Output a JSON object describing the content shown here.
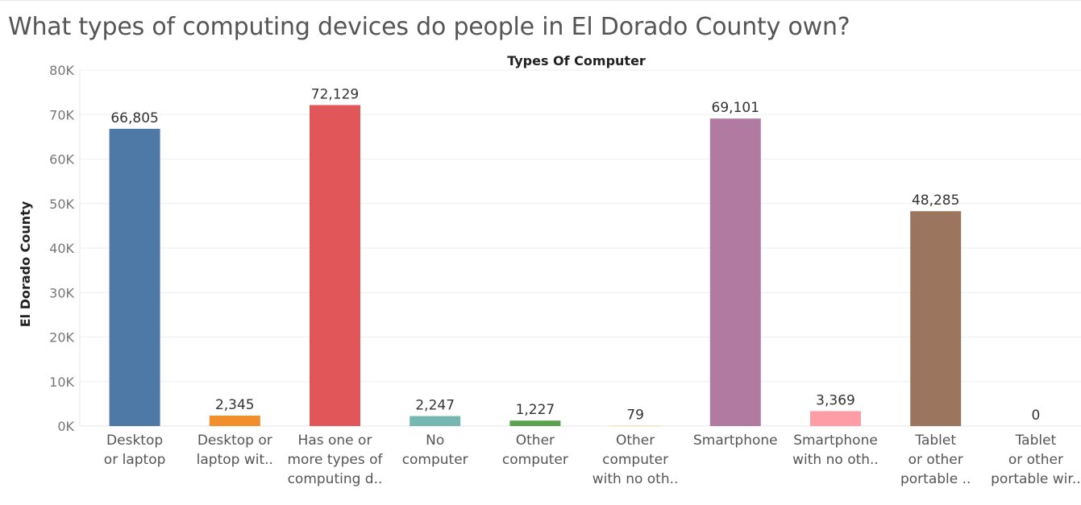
{
  "page": {
    "title": "What types of computing devices do people in El Dorado County own?"
  },
  "chart_data": {
    "type": "bar",
    "title": "Types Of Computer",
    "xlabel": "",
    "ylabel": "El Dorado County",
    "ylim": [
      0,
      80000
    ],
    "yticks": [
      {
        "value": 0,
        "label": "0K"
      },
      {
        "value": 10000,
        "label": "10K"
      },
      {
        "value": 20000,
        "label": "20K"
      },
      {
        "value": 30000,
        "label": "30K"
      },
      {
        "value": 40000,
        "label": "40K"
      },
      {
        "value": 50000,
        "label": "50K"
      },
      {
        "value": 60000,
        "label": "60K"
      },
      {
        "value": 70000,
        "label": "70K"
      },
      {
        "value": 80000,
        "label": "80K"
      }
    ],
    "grid": true,
    "categories": [
      {
        "lines": [
          "Desktop",
          "or laptop"
        ],
        "value": 66805,
        "label": "66,805",
        "color": "#4e79a7"
      },
      {
        "lines": [
          "Desktop or",
          "laptop wit.."
        ],
        "value": 2345,
        "label": "2,345",
        "color": "#f28e2b"
      },
      {
        "lines": [
          "Has one or",
          "more types of",
          "computing d.."
        ],
        "value": 72129,
        "label": "72,129",
        "color": "#e15759"
      },
      {
        "lines": [
          "No",
          "computer"
        ],
        "value": 2247,
        "label": "2,247",
        "color": "#76b7b2"
      },
      {
        "lines": [
          "Other",
          "computer"
        ],
        "value": 1227,
        "label": "1,227",
        "color": "#59a14f"
      },
      {
        "lines": [
          "Other",
          "computer",
          "with no oth.."
        ],
        "value": 79,
        "label": "79",
        "color": "#edc948"
      },
      {
        "lines": [
          "Smartphone"
        ],
        "value": 69101,
        "label": "69,101",
        "color": "#b07aa1"
      },
      {
        "lines": [
          "Smartphone",
          "with no oth.."
        ],
        "value": 3369,
        "label": "3,369",
        "color": "#ff9da7"
      },
      {
        "lines": [
          "Tablet",
          "or other",
          "portable .."
        ],
        "value": 48285,
        "label": "48,285",
        "color": "#9c755f"
      },
      {
        "lines": [
          "Tablet",
          "or other",
          "portable wir.."
        ],
        "value": 0,
        "label": "0",
        "color": "#bab0ac"
      }
    ]
  }
}
